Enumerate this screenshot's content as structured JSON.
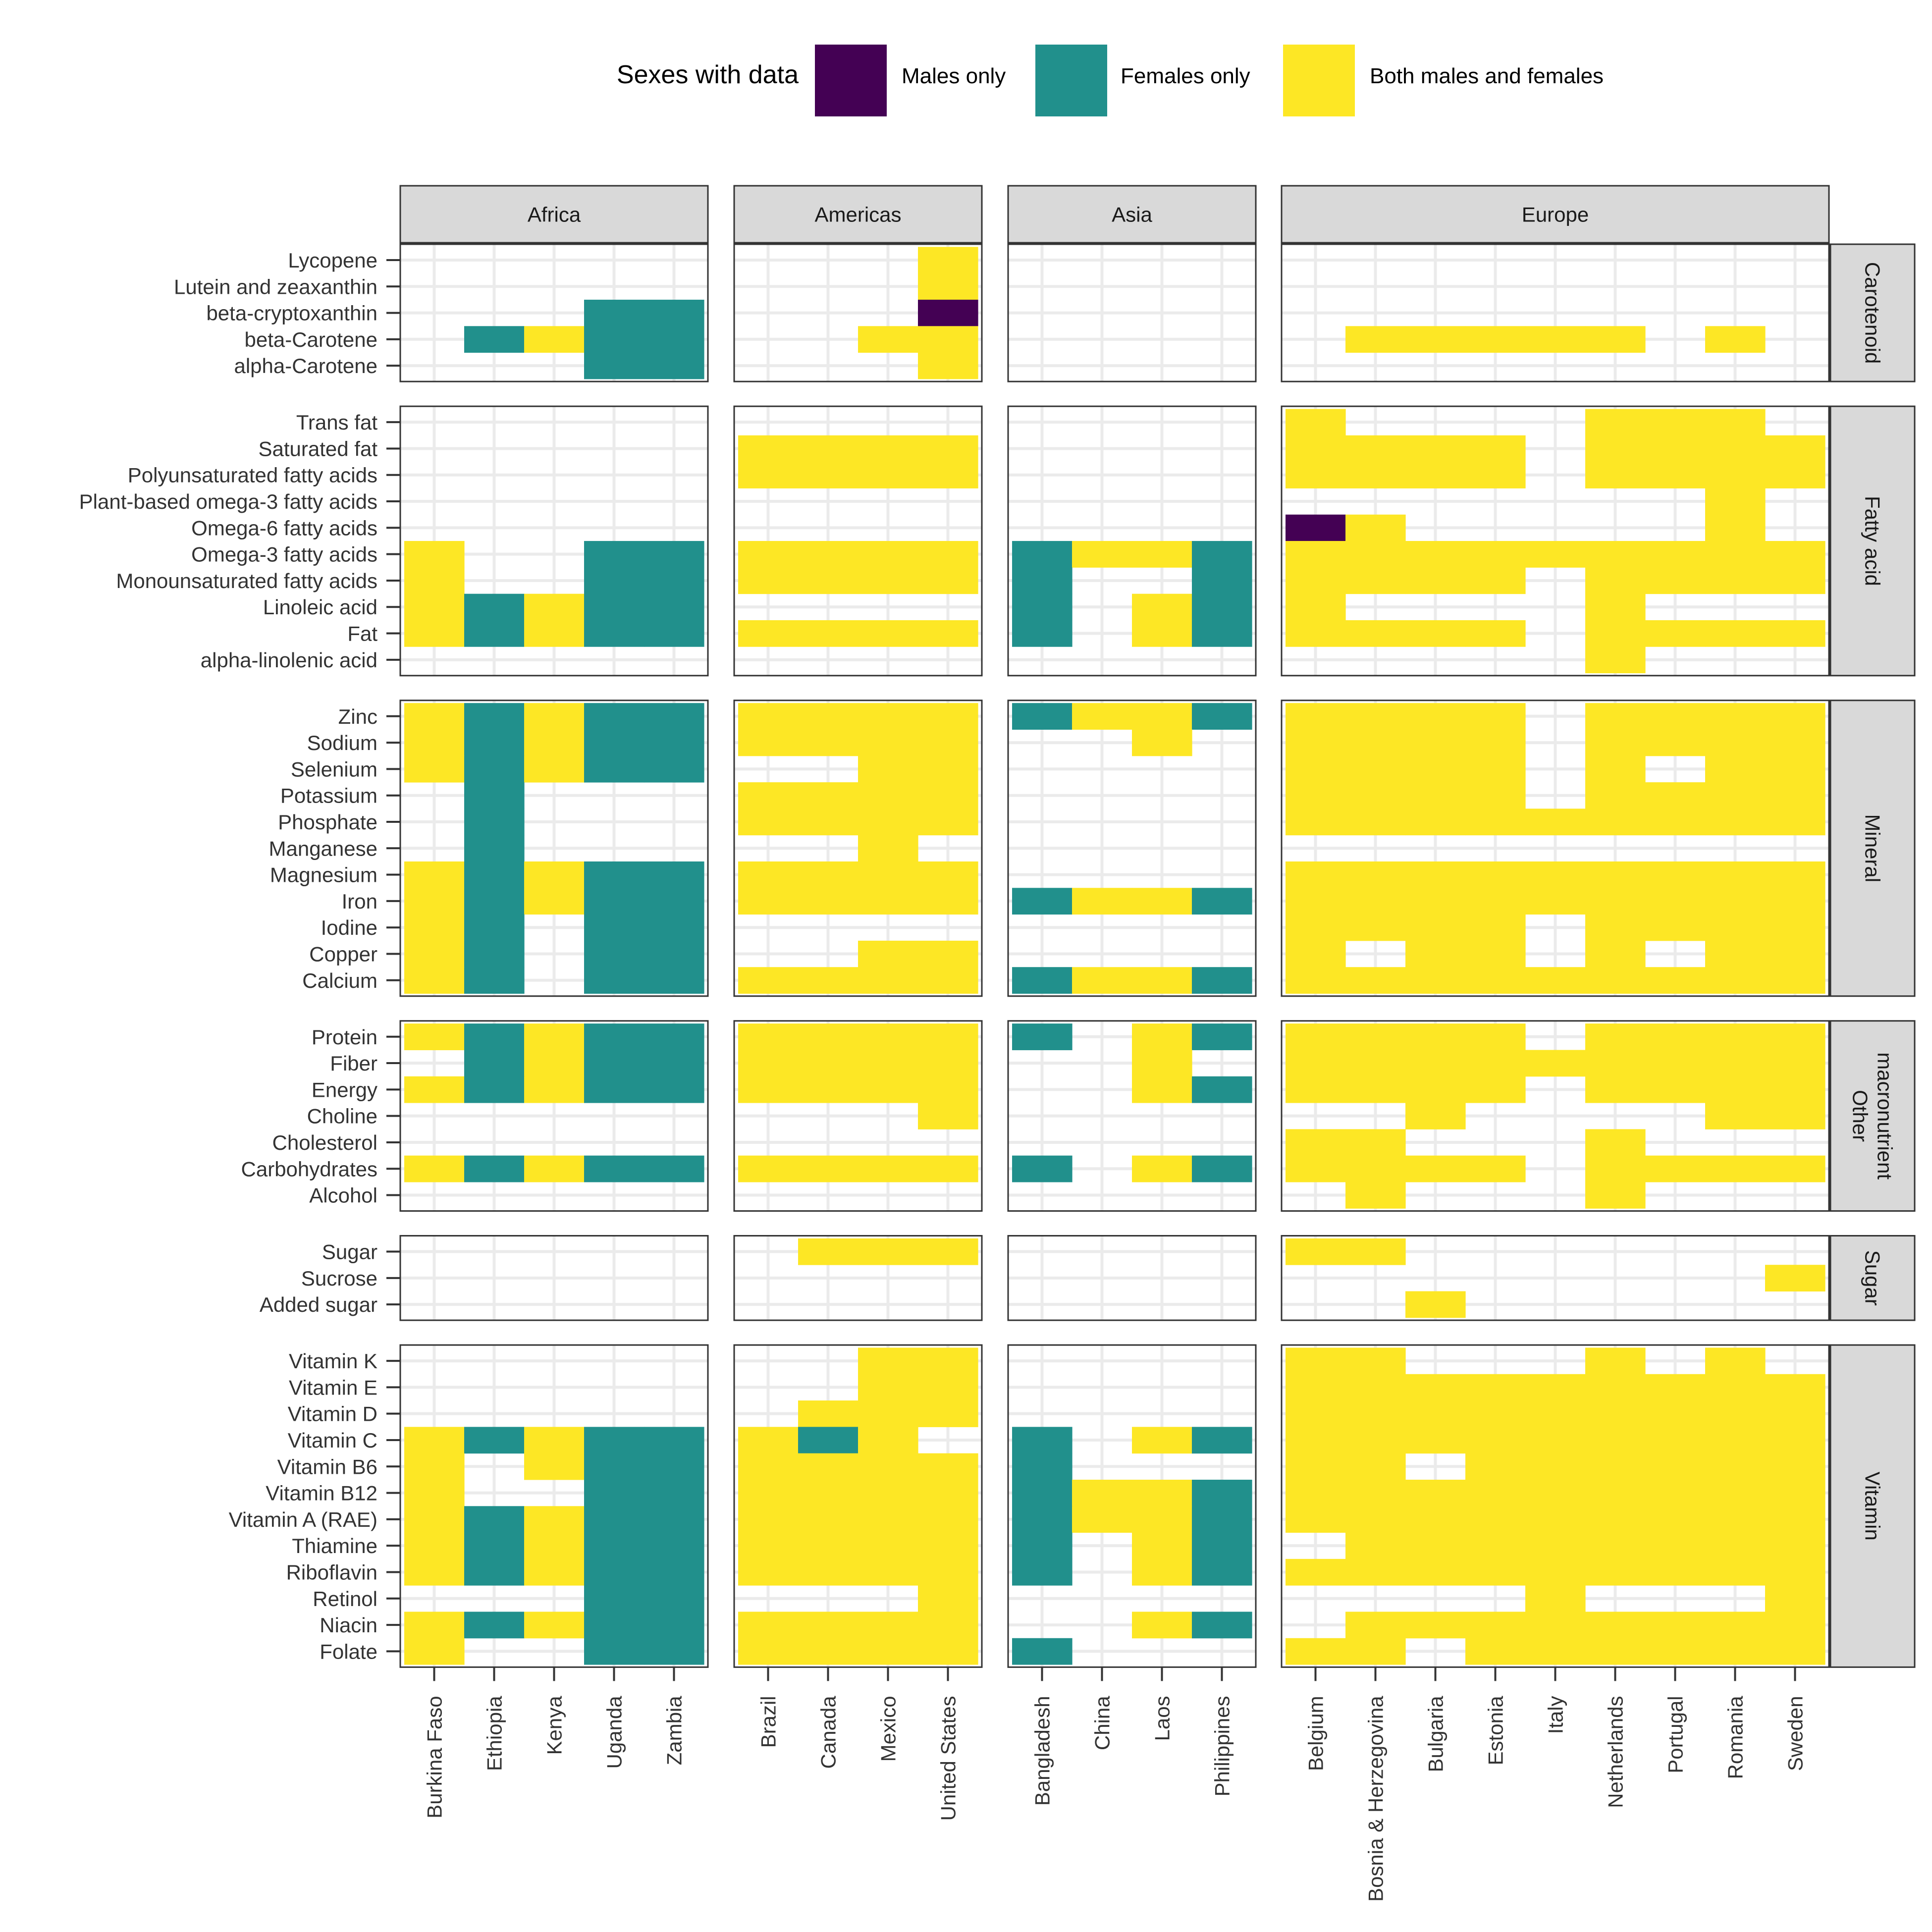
{
  "chart_data": {
    "type": "heatmap",
    "legend": {
      "title": "Sexes with data",
      "placement": "top",
      "entries": [
        {
          "key": "M",
          "label": "Males only",
          "color": "#440154"
        },
        {
          "key": "F",
          "label": "Females only",
          "color": "#21908C"
        },
        {
          "key": "B",
          "label": "Both males and females",
          "color": "#FDE725"
        }
      ]
    },
    "grid": true,
    "regions": [
      {
        "name": "Africa",
        "countries": [
          "Burkina Faso",
          "Ethiopia",
          "Kenya",
          "Uganda",
          "Zambia"
        ]
      },
      {
        "name": "Americas",
        "countries": [
          "Brazil",
          "Canada",
          "Mexico",
          "United States"
        ]
      },
      {
        "name": "Asia",
        "countries": [
          "Bangladesh",
          "China",
          "Laos",
          "Philippines"
        ]
      },
      {
        "name": "Europe",
        "countries": [
          "Belgium",
          "Bosnia & Herzegovina",
          "Bulgaria",
          "Estonia",
          "Italy",
          "Netherlands",
          "Portugal",
          "Romania",
          "Sweden"
        ]
      }
    ],
    "groups": [
      {
        "name": "Carotenoid",
        "nutrients": [
          "Lycopene",
          "Lutein and zeaxanthin",
          "beta-cryptoxanthin",
          "beta-Carotene",
          "alpha-Carotene"
        ]
      },
      {
        "name": "Fatty acid",
        "nutrients": [
          "Trans fat",
          "Saturated fat",
          "Polyunsaturated fatty acids",
          "Plant-based omega-3 fatty acids",
          "Omega-6 fatty acids",
          "Omega-3 fatty acids",
          "Monounsaturated fatty acids",
          "Linoleic acid",
          "Fat",
          "alpha-linolenic acid"
        ]
      },
      {
        "name": "Mineral",
        "nutrients": [
          "Zinc",
          "Sodium",
          "Selenium",
          "Potassium",
          "Phosphate",
          "Manganese",
          "Magnesium",
          "Iron",
          "Iodine",
          "Copper",
          "Calcium"
        ]
      },
      {
        "name": "Other macronutrient",
        "label_lines": [
          "Other",
          "macronutrient"
        ],
        "nutrients": [
          "Protein",
          "Fiber",
          "Energy",
          "Choline",
          "Cholesterol",
          "Carbohydrates",
          "Alcohol"
        ]
      },
      {
        "name": "Sugar",
        "nutrients": [
          "Sugar",
          "Sucrose",
          "Added sugar"
        ]
      },
      {
        "name": "Vitamin",
        "nutrients": [
          "Vitamin K",
          "Vitamin E",
          "Vitamin D",
          "Vitamin C",
          "Vitamin B6",
          "Vitamin B12",
          "Vitamin A (RAE)",
          "Thiamine",
          "Riboflavin",
          "Retinol",
          "Niacin",
          "Folate"
        ]
      }
    ],
    "cells": {
      "Carotenoid": {
        "Africa": [
          "-----",
          "-----",
          "---FF",
          "-FBFF",
          "---FF"
        ],
        "Americas": [
          "---B",
          "---B",
          "---M",
          "--BB",
          "---B"
        ],
        "Asia": [
          "----",
          "----",
          "----",
          "----",
          "----"
        ],
        "Europe": [
          "---------",
          "---------",
          "---------",
          "-BBBBB-B-",
          "---------"
        ]
      },
      "Fatty acid": {
        "Africa": [
          "-----",
          "-----",
          "-----",
          "-----",
          "-----",
          "B--FF",
          "B--FF",
          "BFBFF",
          "BFBFF",
          "-----"
        ],
        "Americas": [
          "----",
          "BBBB",
          "BBBB",
          "----",
          "----",
          "BBBB",
          "BBBB",
          "----",
          "BBBB",
          "----"
        ],
        "Asia": [
          "----",
          "----",
          "----",
          "----",
          "----",
          "FBBF",
          "F--F",
          "F-BF",
          "F-BF",
          "----"
        ],
        "Europe": [
          "B----BBB-",
          "BBBB-BBBB",
          "BBBB-BBBB",
          "-------B-",
          "MB-----B-",
          "BBBBBBBBB",
          "BBBB-BBBB",
          "B----B---",
          "BBBB-BBBB",
          "-----B---"
        ]
      },
      "Mineral": {
        "Africa": [
          "BFBFF",
          "BFBFF",
          "BFBFF",
          "-F---",
          "-F---",
          "-F---",
          "BFBFF",
          "BFBFF",
          "BF-FF",
          "BF-FF",
          "BF-FF"
        ],
        "Americas": [
          "BBBB",
          "BBBB",
          "--BB",
          "BBBB",
          "BBBB",
          "--B-",
          "BBBB",
          "BBBB",
          "----",
          "--BB",
          "BBBB"
        ],
        "Asia": [
          "FBBF",
          "--B-",
          "----",
          "----",
          "----",
          "----",
          "----",
          "FBBF",
          "----",
          "----",
          "FBBF"
        ],
        "Europe": [
          "BBBB-BBBB",
          "BBBB-BBBB",
          "BBBB-B-BB",
          "BBBB-BBBB",
          "BBBBBBBBB",
          "---------",
          "BBBBBBBBB",
          "BBBBBBBBB",
          "BBBB-BBBB",
          "B-BB-B-BB",
          "BBBBBBBBB"
        ]
      },
      "Other macronutrient": {
        "Africa": [
          "BFBFF",
          "-FBFF",
          "BFBFF",
          "-----",
          "-----",
          "BFBFF",
          "-----"
        ],
        "Americas": [
          "BBBB",
          "BBBB",
          "BBBB",
          "---B",
          "----",
          "BBBB",
          "----"
        ],
        "Asia": [
          "F-BF",
          "--B-",
          "--BF",
          "----",
          "----",
          "F-BF",
          "----"
        ],
        "Europe": [
          "BBBB-BBBB",
          "BBBBBBBBB",
          "BBBB-BBBB",
          "--B----BB",
          "BB---B---",
          "BBBB-BBBB",
          "-B---B---"
        ]
      },
      "Sugar": {
        "Africa": [
          "-----",
          "-----",
          "-----"
        ],
        "Americas": [
          "-BBB",
          "----",
          "----"
        ],
        "Asia": [
          "----",
          "----",
          "----"
        ],
        "Europe": [
          "BB-------",
          "--------B",
          "--B------"
        ]
      },
      "Vitamin": {
        "Africa": [
          "-----",
          "-----",
          "-----",
          "BFBFF",
          "B-BFF",
          "B--FF",
          "BFBFF",
          "BFBFF",
          "BFBFF",
          "---FF",
          "BFBFF",
          "B--FF"
        ],
        "Americas": [
          "--BB",
          "--BB",
          "-BBB",
          "BFB-",
          "BBBB",
          "BBBB",
          "BBBB",
          "BBBB",
          "BBBB",
          "---B",
          "BBBB",
          "BBBB"
        ],
        "Asia": [
          "----",
          "----",
          "----",
          "F-BF",
          "F---",
          "FBBF",
          "FBBF",
          "F-BF",
          "F-BF",
          "----",
          "--BF",
          "F---"
        ],
        "Europe": [
          "BB---B-B-",
          "BBBBBBBBB",
          "BBBBBBBBB",
          "BBBBBBBBB",
          "BB-BBBBBB",
          "BBBBBBBBB",
          "BBBBBBBBB",
          "-BBBBBBBB",
          "BBBBBBBBB",
          "----B---B",
          "-BBBBBBBB",
          "BB-BBBBBB"
        ]
      }
    }
  }
}
